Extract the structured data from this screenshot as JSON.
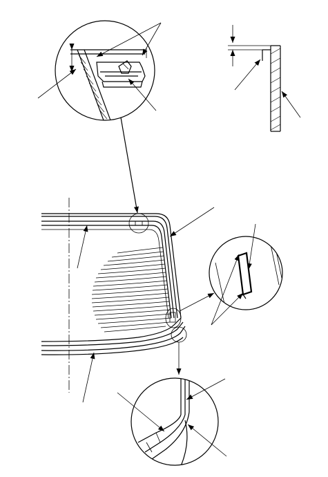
{
  "figure": {
    "kind": "technical-line-drawing",
    "subject": "rear-window-glass-installation",
    "ink_color": "#000000",
    "background_color": "#ffffff",
    "has_text": false,
    "detail_views": [
      "clip-detail-top",
      "spacer-profile-top-right",
      "clip-detail-right",
      "corner-detail-bottom"
    ]
  }
}
